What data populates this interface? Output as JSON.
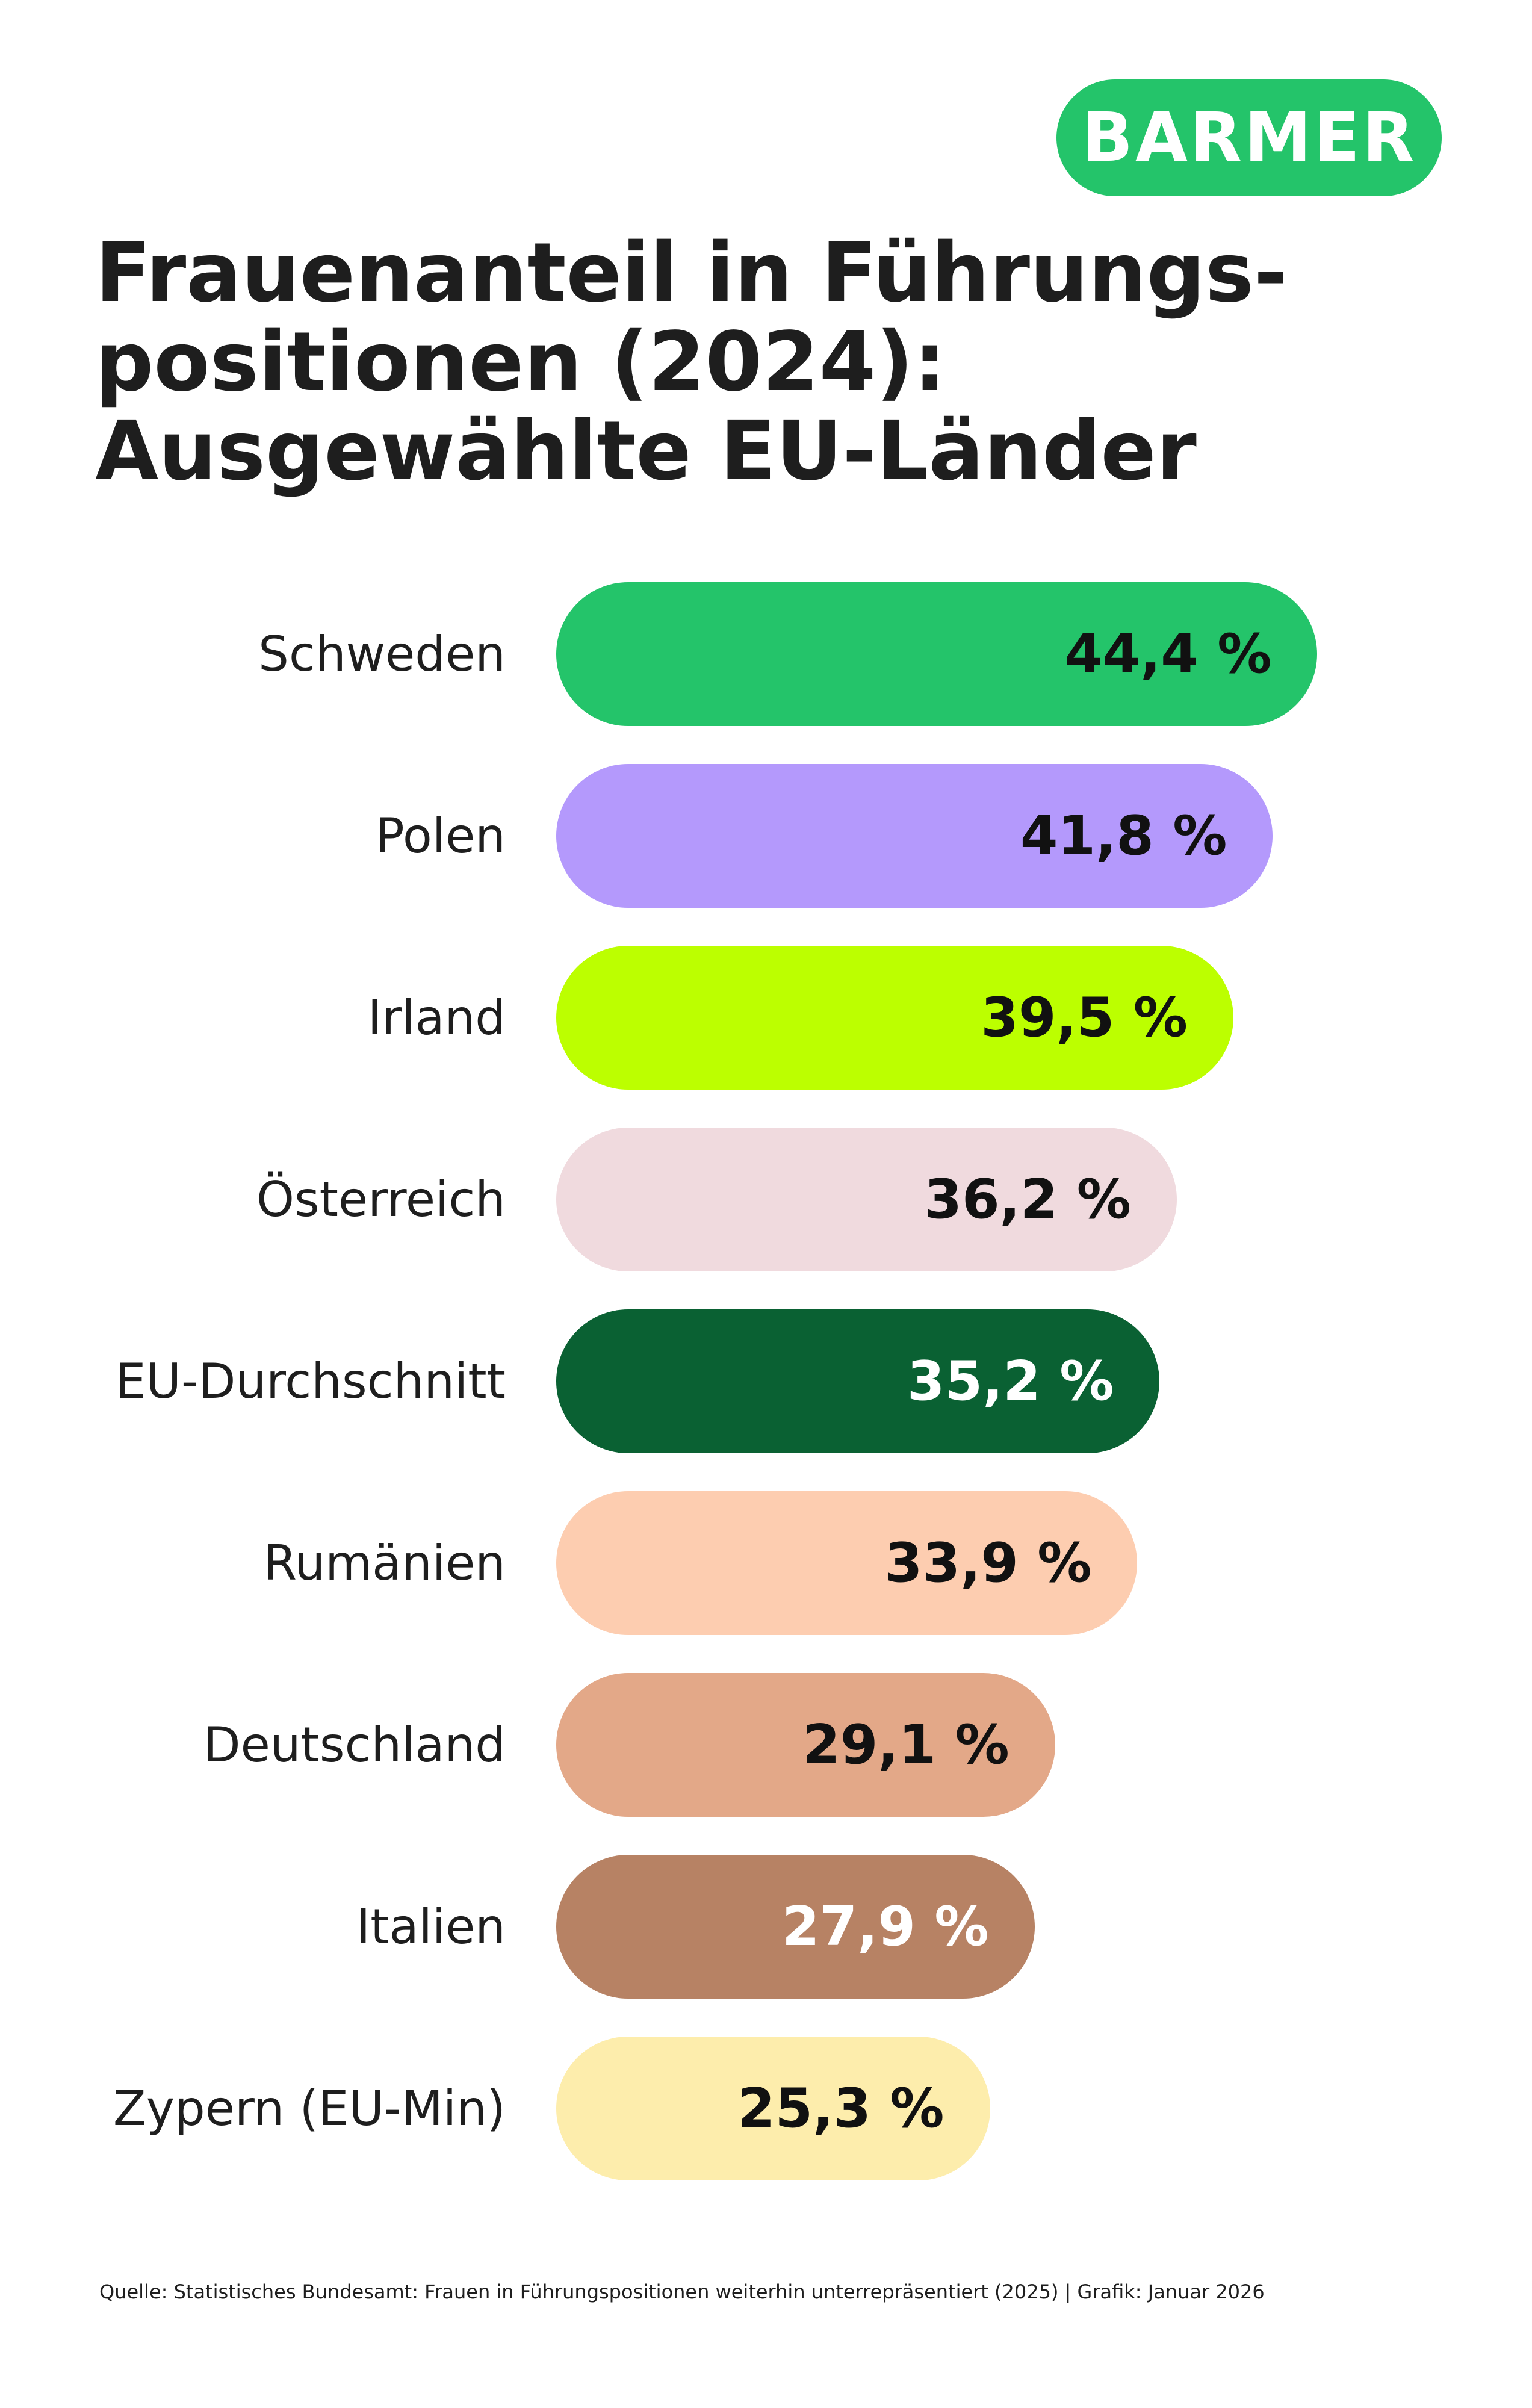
{
  "logo": "BARMER",
  "chart_data": {
    "type": "bar",
    "orientation": "horizontal",
    "title": "Frauenanteil in Führungs-positionen (2024): Ausgewählte EU-Länder",
    "categories": [
      "Schweden",
      "Polen",
      "Irland",
      "Österreich",
      "EU-Durchschnitt",
      "Rumänien",
      "Deutschland",
      "Italien",
      "Zypern (EU-Min)"
    ],
    "values": [
      44.4,
      41.8,
      39.5,
      36.2,
      35.2,
      33.9,
      29.1,
      27.9,
      25.3
    ],
    "data_labels": [
      "44,4 %",
      "41,8 %",
      "39,5 %",
      "36,2 %",
      "35,2 %",
      "33,9 %",
      "29,1 %",
      "27,9 %",
      "25,3 %"
    ],
    "colors": [
      "#24c46a",
      "#b499fc",
      "#bcff00",
      "#f0dade",
      "#0a6133",
      "#fdcdb0",
      "#e3a888",
      "#b78264",
      "#fdedac"
    ],
    "label_colors": [
      "#111111",
      "#111111",
      "#111111",
      "#111111",
      "#ffffff",
      "#111111",
      "#111111",
      "#ffffff",
      "#111111"
    ],
    "xlabel": "",
    "ylabel": "",
    "grid": false
  },
  "footer": "Quelle: Statistisches Bundesamt: Frauen in Führungspositionen weiterhin unterrepräsentiert (2025) | Grafik: Januar 2026"
}
